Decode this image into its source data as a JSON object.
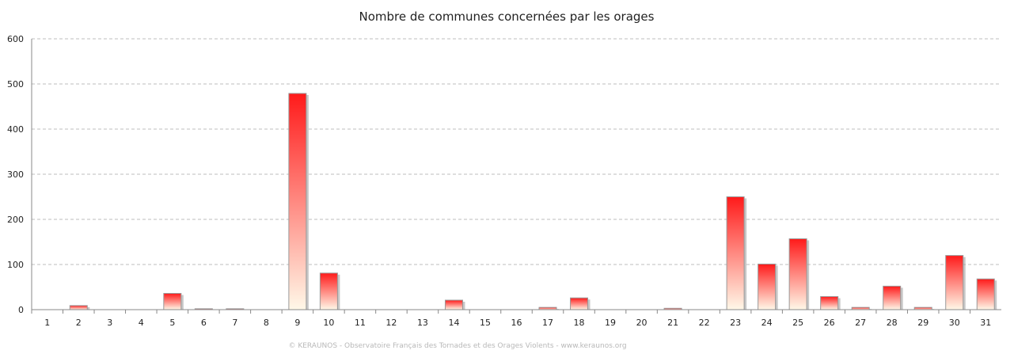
{
  "chart_data": {
    "type": "bar",
    "title": "Nombre de communes concernées par les orages",
    "xlabel": "",
    "ylabel": "",
    "categories": [
      "1",
      "2",
      "3",
      "4",
      "5",
      "6",
      "7",
      "8",
      "9",
      "10",
      "11",
      "12",
      "13",
      "14",
      "15",
      "16",
      "17",
      "18",
      "19",
      "20",
      "21",
      "22",
      "23",
      "24",
      "25",
      "26",
      "27",
      "28",
      "29",
      "30",
      "31"
    ],
    "values": [
      0,
      9,
      0,
      0,
      36,
      2,
      2,
      0,
      479,
      81,
      0,
      0,
      0,
      21,
      0,
      0,
      5,
      26,
      0,
      0,
      3,
      0,
      250,
      101,
      157,
      29,
      5,
      52,
      5,
      120,
      68
    ],
    "ylim": [
      0,
      600
    ],
    "yticks": [
      0,
      100,
      200,
      300,
      400,
      500,
      600
    ],
    "grid": true,
    "legend": "none",
    "colors": {
      "bar_top": "#ff1a1a",
      "bar_bottom": "#fff8e8",
      "grid": "#bdbdbd"
    }
  },
  "footer": "© KERAUNOS - Observatoire Français des Tornades et des Orages Violents - www.keraunos.org"
}
